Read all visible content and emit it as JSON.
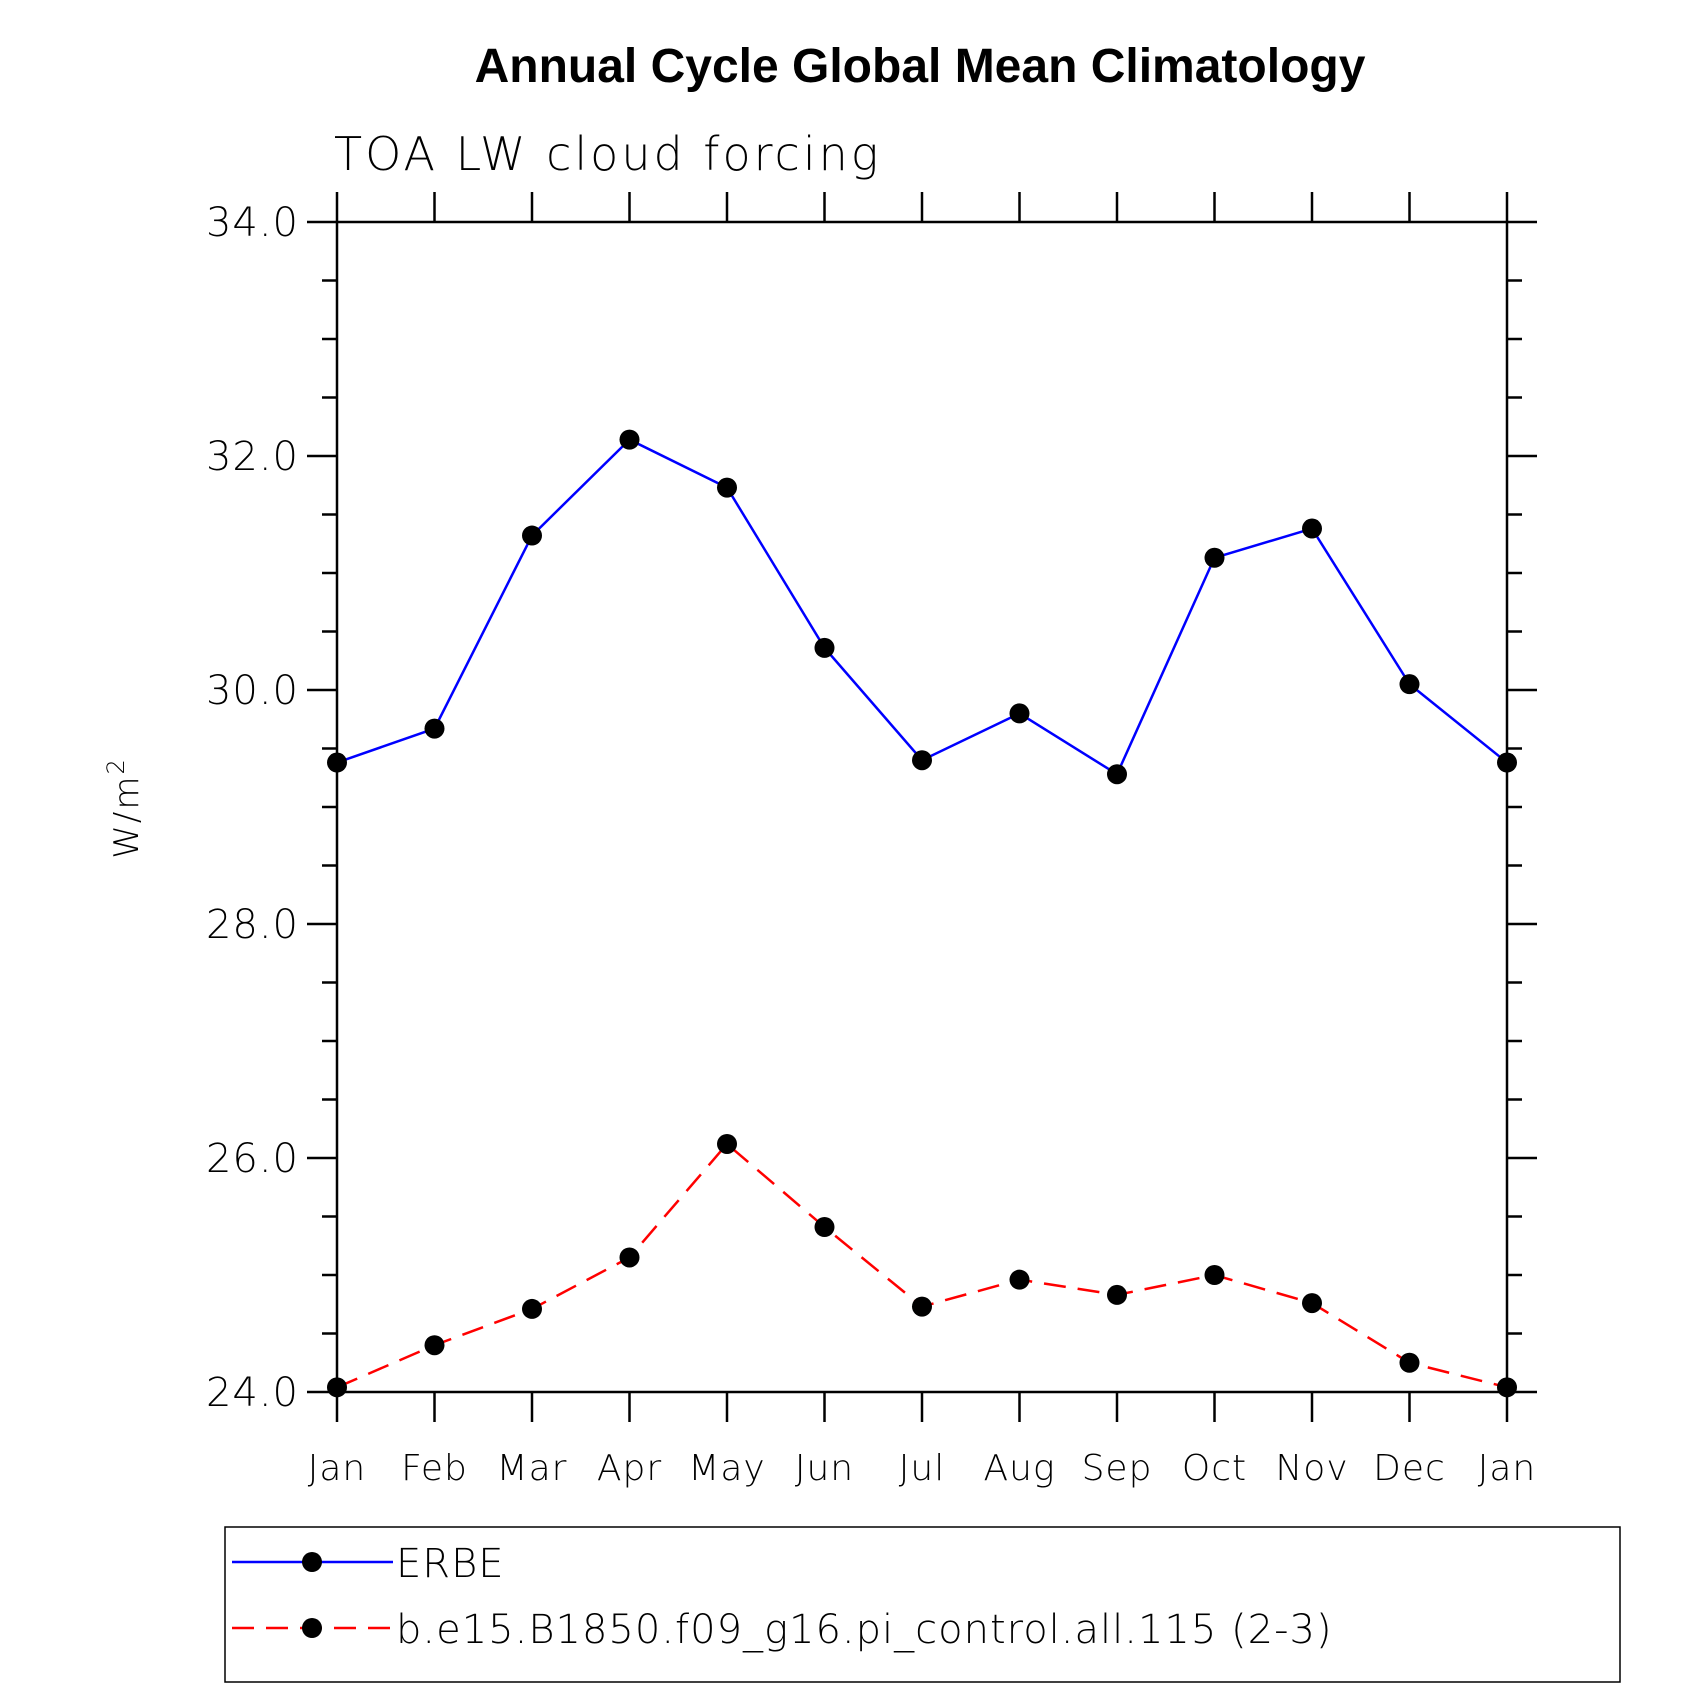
{
  "chart_data": {
    "type": "line",
    "title": "Annual Cycle Global Mean Climatology",
    "subtitle": "TOA LW cloud forcing",
    "ylabel": "W/m",
    "ylabel_superscript": "2",
    "ylim": [
      24.0,
      34.0
    ],
    "yticks": [
      "24.0",
      "26.0",
      "28.0",
      "30.0",
      "32.0",
      "34.0"
    ],
    "ytick_values": [
      24,
      26,
      28,
      30,
      32,
      34
    ],
    "y_minor_step": 0.5,
    "categories": [
      "Jan",
      "Feb",
      "Mar",
      "Apr",
      "May",
      "Jun",
      "Jul",
      "Aug",
      "Sep",
      "Oct",
      "Nov",
      "Dec",
      "Jan"
    ],
    "grid": false,
    "legend_placement": "bottom",
    "series": [
      {
        "name": "ERBE",
        "color": "#0000ff",
        "dash": "solid",
        "marker": "filled-circle",
        "values": [
          29.38,
          29.67,
          31.32,
          32.14,
          31.73,
          30.36,
          29.4,
          29.8,
          29.28,
          31.13,
          31.38,
          30.05,
          29.38
        ]
      },
      {
        "name": "b.e15.B1850.f09_g16.pi_control.all.115 (2-3)",
        "color": "#ff0000",
        "dash": "dashed",
        "marker": "filled-circle",
        "values": [
          24.04,
          24.4,
          24.71,
          25.15,
          26.12,
          25.41,
          24.73,
          24.96,
          24.83,
          25.0,
          24.76,
          24.25,
          24.04
        ]
      }
    ]
  }
}
